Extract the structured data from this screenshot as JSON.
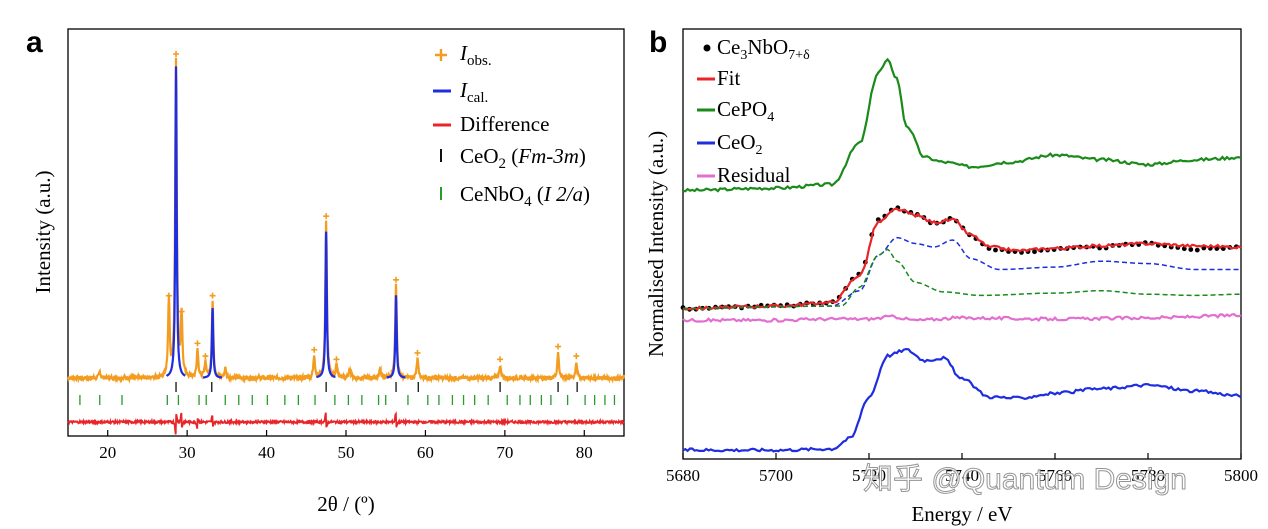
{
  "watermark": "知乎 @Quantum Design",
  "chart_data": [
    {
      "panel_label": "a",
      "type": "line",
      "xlabel": "2θ / (º)",
      "ylabel": "Intensity (a.u.)",
      "xlim": [
        15,
        85
      ],
      "xticks": [
        20,
        30,
        40,
        50,
        60,
        70,
        80
      ],
      "legend": {
        "placement": "top-right",
        "entries": [
          {
            "symbol": "+",
            "name": "I",
            "sub": "obs.",
            "color": "#f39c1f"
          },
          {
            "symbol": "line",
            "name": "I",
            "sub": "cal.",
            "color": "#1e2de0"
          },
          {
            "symbol": "line",
            "name": "Difference",
            "sub": "",
            "color": "#e8262a"
          },
          {
            "symbol": "tick",
            "name": "CeO",
            "sub": "2",
            "phase": "Fm-3m",
            "color": "#111111"
          },
          {
            "symbol": "tick",
            "name": "CeNbO",
            "sub": "4",
            "phase": "I 2/a",
            "color": "#2a9a2a"
          }
        ]
      },
      "series": [
        {
          "name": "I obs.",
          "color": "#f39c1f",
          "baseline": 0,
          "peaks": [
            {
              "x": 19.0,
              "y": 2
            },
            {
              "x": 27.7,
              "y": 24
            },
            {
              "x": 28.6,
              "y": 100
            },
            {
              "x": 29.3,
              "y": 19
            },
            {
              "x": 31.3,
              "y": 9
            },
            {
              "x": 32.3,
              "y": 5
            },
            {
              "x": 33.2,
              "y": 24
            },
            {
              "x": 34.8,
              "y": 3
            },
            {
              "x": 46.0,
              "y": 7
            },
            {
              "x": 47.5,
              "y": 49
            },
            {
              "x": 48.8,
              "y": 4
            },
            {
              "x": 50.5,
              "y": 3
            },
            {
              "x": 54.3,
              "y": 3
            },
            {
              "x": 56.3,
              "y": 29
            },
            {
              "x": 59.0,
              "y": 6
            },
            {
              "x": 69.4,
              "y": 4
            },
            {
              "x": 76.7,
              "y": 8
            },
            {
              "x": 79.0,
              "y": 5
            }
          ]
        },
        {
          "name": "I cal.",
          "color": "#1e2de0",
          "peaks": [
            {
              "x": 28.6,
              "y": 98
            },
            {
              "x": 33.2,
              "y": 22
            },
            {
              "x": 47.5,
              "y": 46
            },
            {
              "x": 56.3,
              "y": 26
            }
          ]
        },
        {
          "name": "Difference",
          "color": "#e8262a",
          "offset": -14,
          "features": [
            {
              "x": 28.6,
              "y": -4
            },
            {
              "x": 29.3,
              "y": 3
            },
            {
              "x": 31.3,
              "y": -2
            },
            {
              "x": 33.2,
              "y": 2
            },
            {
              "x": 47.5,
              "y": 3
            },
            {
              "x": 56.3,
              "y": 3
            }
          ]
        }
      ],
      "reflections": {
        "CeO2": [
          28.6,
          33.1,
          47.5,
          56.3,
          59.1,
          69.4,
          76.7,
          79.1
        ],
        "CeNbO4": [
          16.5,
          19.0,
          21.8,
          27.5,
          28.9,
          31.5,
          32.4,
          34.8,
          36.5,
          38.2,
          40.1,
          42.3,
          44.0,
          46.1,
          48.6,
          50.3,
          52.0,
          54.1,
          55.0,
          57.8,
          60.3,
          61.7,
          63.4,
          64.8,
          66.2,
          67.9,
          70.3,
          71.9,
          73.2,
          74.6,
          75.8,
          77.9,
          80.1,
          81.3,
          82.6,
          83.8
        ]
      }
    },
    {
      "panel_label": "b",
      "type": "line",
      "xlabel": "Energy / eV",
      "ylabel": "Normalised Intensity (a.u.)",
      "xlim": [
        5680,
        5800
      ],
      "xticks": [
        5680,
        5700,
        5720,
        5740,
        5760,
        5780,
        5800
      ],
      "xtick_labels": [
        "5680",
        "5700",
        "5720",
        "5740",
        "5760",
        "5780",
        "5800"
      ],
      "legend": {
        "placement": "top-left",
        "entries": [
          {
            "symbol": "dot",
            "name": "Ce",
            "sub": "3",
            "name2": "NbO",
            "sub2": "7+δ",
            "color": "#000000"
          },
          {
            "symbol": "line",
            "name": "Fit",
            "color": "#e8262a"
          },
          {
            "symbol": "line",
            "name": "CePO",
            "sub": "4",
            "color": "#1a8a1a"
          },
          {
            "symbol": "line",
            "name": "CeO",
            "sub": "2",
            "color": "#1e2de0"
          },
          {
            "symbol": "line",
            "name": "Residual",
            "color": "#e26fd0"
          }
        ]
      },
      "series": [
        {
          "name": "CePO4",
          "color": "#1a8a1a",
          "offset": 2.2,
          "x": [
            5680,
            5700,
            5712,
            5718,
            5722,
            5724,
            5726,
            5728,
            5732,
            5736,
            5742,
            5750,
            5760,
            5770,
            5780,
            5790,
            5800
          ],
          "y": [
            0.0,
            0.02,
            0.05,
            0.4,
            1.0,
            1.1,
            0.95,
            0.55,
            0.28,
            0.24,
            0.2,
            0.24,
            0.3,
            0.26,
            0.22,
            0.26,
            0.28
          ]
        },
        {
          "name": "Ce3NbO7+δ",
          "color": "#000000",
          "offset": 1.2,
          "x": [
            5680,
            5700,
            5712,
            5718,
            5722,
            5726,
            5730,
            5734,
            5738,
            5742,
            5746,
            5752,
            5760,
            5770,
            5780,
            5790,
            5800
          ],
          "y": [
            0.0,
            0.02,
            0.05,
            0.3,
            0.75,
            0.85,
            0.8,
            0.72,
            0.76,
            0.62,
            0.5,
            0.48,
            0.5,
            0.52,
            0.55,
            0.5,
            0.52
          ]
        },
        {
          "name": "Fit",
          "color": "#e8262a",
          "offset": 1.2,
          "x": [
            5680,
            5700,
            5712,
            5718,
            5722,
            5726,
            5730,
            5734,
            5738,
            5742,
            5746,
            5752,
            5760,
            5770,
            5780,
            5790,
            5800
          ],
          "y": [
            0.0,
            0.02,
            0.05,
            0.28,
            0.73,
            0.84,
            0.79,
            0.73,
            0.75,
            0.62,
            0.52,
            0.49,
            0.51,
            0.53,
            0.55,
            0.53,
            0.52
          ]
        },
        {
          "name": "CeO2 component",
          "color": "#1e2de0",
          "dashed": true,
          "offset": 1.2,
          "x": [
            5680,
            5712,
            5718,
            5722,
            5726,
            5730,
            5734,
            5738,
            5742,
            5748,
            5760,
            5770,
            5780,
            5790,
            5800
          ],
          "y": [
            0.0,
            0.02,
            0.15,
            0.45,
            0.6,
            0.55,
            0.52,
            0.58,
            0.42,
            0.33,
            0.35,
            0.4,
            0.38,
            0.33,
            0.33
          ]
        },
        {
          "name": "CePO4 component",
          "color": "#1a8a1a",
          "dashed": true,
          "offset": 1.2,
          "x": [
            5680,
            5714,
            5718,
            5722,
            5724,
            5726,
            5730,
            5736,
            5744,
            5760,
            5770,
            5780,
            5790,
            5800
          ],
          "y": [
            0.0,
            0.02,
            0.18,
            0.45,
            0.5,
            0.4,
            0.22,
            0.14,
            0.11,
            0.13,
            0.15,
            0.12,
            0.11,
            0.12
          ]
        },
        {
          "name": "Residual",
          "color": "#e26fd0",
          "offset": 1.1,
          "x": [
            5680,
            5700,
            5710,
            5720,
            5725,
            5730,
            5740,
            5760,
            5780,
            5800
          ],
          "y": [
            0.0,
            0.0,
            0.01,
            0.01,
            0.03,
            0.0,
            0.02,
            0.01,
            0.02,
            0.04
          ]
        },
        {
          "name": "CeO2",
          "color": "#1e2de0",
          "offset": 0.0,
          "x": [
            5680,
            5700,
            5712,
            5716,
            5720,
            5724,
            5728,
            5732,
            5736,
            5740,
            5746,
            5752,
            5760,
            5770,
            5780,
            5790,
            5800
          ],
          "y": [
            0.0,
            0.0,
            0.01,
            0.1,
            0.45,
            0.8,
            0.85,
            0.76,
            0.78,
            0.6,
            0.45,
            0.44,
            0.48,
            0.52,
            0.55,
            0.5,
            0.46
          ]
        }
      ]
    }
  ]
}
